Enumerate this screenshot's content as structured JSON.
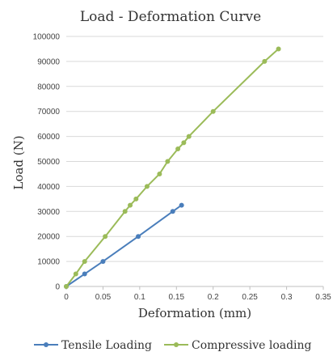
{
  "chart_data": {
    "type": "line",
    "title": "Load - Deformation Curve",
    "xlabel": "Deformation (mm)",
    "ylabel": "Load (N)",
    "xlim": [
      0,
      0.35
    ],
    "ylim": [
      0,
      100000
    ],
    "x_ticks": [
      "0",
      "0.05",
      "0.1",
      "0.15",
      "0.2",
      "0.25",
      "0.3",
      "0.35"
    ],
    "y_ticks": [
      "0",
      "10000",
      "20000",
      "30000",
      "40000",
      "50000",
      "60000",
      "70000",
      "80000",
      "90000",
      "100000"
    ],
    "grid": "horizontal",
    "legend_position": "bottom",
    "series": [
      {
        "name": "Tensile Loading",
        "color": "#4a7ebb",
        "points": [
          [
            0,
            0
          ],
          [
            0.025,
            5000
          ],
          [
            0.05,
            10000
          ],
          [
            0.098,
            20000
          ],
          [
            0.145,
            30000
          ],
          [
            0.157,
            32500
          ]
        ]
      },
      {
        "name": "Compressive loading",
        "color": "#9bbb59",
        "points": [
          [
            0,
            0
          ],
          [
            0.013,
            5000
          ],
          [
            0.025,
            10000
          ],
          [
            0.053,
            20000
          ],
          [
            0.08,
            30000
          ],
          [
            0.087,
            32500
          ],
          [
            0.095,
            35000
          ],
          [
            0.11,
            40000
          ],
          [
            0.127,
            45000
          ],
          [
            0.138,
            50000
          ],
          [
            0.152,
            55000
          ],
          [
            0.16,
            57500
          ],
          [
            0.167,
            60000
          ],
          [
            0.2,
            70000
          ],
          [
            0.27,
            90000
          ],
          [
            0.289,
            95000
          ]
        ]
      }
    ]
  }
}
